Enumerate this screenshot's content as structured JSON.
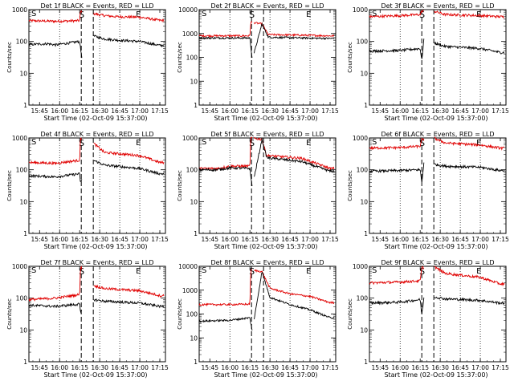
{
  "chart_data": [
    {
      "type": "line",
      "title": "Det 1f BLACK = Events, RED = LLD",
      "xlabel": "Start Time (02-Oct-09 15:37:00)",
      "ylabel": "Counts/sec",
      "yscale": "log",
      "ylim": [
        1,
        1000
      ],
      "yticks": [
        "1",
        "10",
        "100",
        "1000"
      ],
      "xticks": [
        "15:45",
        "16:00",
        "16:15",
        "16:30",
        "16:45",
        "17:00",
        "17:15"
      ],
      "markers": [
        "S",
        "E"
      ],
      "series": [
        {
          "color": "#e00000",
          "points": [
            [
              15.617,
              450
            ],
            [
              15.95,
              430
            ],
            [
              16.25,
              450
            ],
            [
              16.26,
              900
            ],
            [
              16.3,
              850
            ],
            [
              16.32,
              280
            ],
            [
              16.42,
              750
            ],
            [
              16.56,
              650
            ],
            [
              16.72,
              600
            ],
            [
              17.0,
              580
            ],
            [
              17.25,
              460
            ]
          ],
          "gap": [
            16.28,
            16.42
          ]
        },
        {
          "color": "#000000",
          "points": [
            [
              15.617,
              80
            ],
            [
              15.85,
              85
            ],
            [
              15.95,
              78
            ],
            [
              16.25,
              100
            ],
            [
              16.26,
              60
            ],
            [
              16.28,
              30
            ],
            [
              16.42,
              150
            ],
            [
              16.56,
              120
            ],
            [
              16.72,
              110
            ],
            [
              17.0,
              100
            ],
            [
              17.25,
              75
            ]
          ],
          "gap": [
            16.28,
            16.42
          ]
        }
      ]
    },
    {
      "type": "line",
      "title": "Det 2f BLACK = Events, RED = LLD",
      "xlabel": "Start Time (02-Oct-09 15:37:00)",
      "ylabel": "Counts/sec",
      "yscale": "log",
      "ylim": [
        1,
        10000
      ],
      "yticks": [
        "1",
        "10",
        "100",
        "1000",
        "10000"
      ],
      "xticks": [
        "15:45",
        "16:00",
        "16:15",
        "16:30",
        "16:45",
        "17:00",
        "17:15"
      ],
      "markers": [
        "S",
        "E"
      ],
      "series": [
        {
          "color": "#e00000",
          "points": [
            [
              15.617,
              800
            ],
            [
              16.0,
              800
            ],
            [
              16.25,
              800
            ],
            [
              16.26,
              3000
            ],
            [
              16.4,
              2500
            ],
            [
              16.48,
              900
            ],
            [
              16.9,
              850
            ],
            [
              17.25,
              800
            ]
          ],
          "gap": [
            16.28,
            16.3
          ]
        },
        {
          "color": "#000000",
          "points": [
            [
              15.617,
              650
            ],
            [
              16.0,
              650
            ],
            [
              16.25,
              650
            ],
            [
              16.26,
              300
            ],
            [
              16.28,
              80
            ],
            [
              16.4,
              2500
            ],
            [
              16.48,
              700
            ],
            [
              16.9,
              650
            ],
            [
              17.25,
              620
            ]
          ],
          "gap": [
            16.28,
            16.3
          ]
        }
      ]
    },
    {
      "type": "line",
      "title": "Det 3f BLACK = Events, RED = LLD",
      "xlabel": "Start Time (02-Oct-09 15:37:00)",
      "ylabel": "Counts/sec",
      "yscale": "log",
      "ylim": [
        1,
        1000
      ],
      "yticks": [
        "1",
        "10",
        "100",
        "1000"
      ],
      "xticks": [
        "15:45",
        "16:00",
        "16:15",
        "16:30",
        "16:45",
        "17:00",
        "17:15"
      ],
      "markers": [
        "S",
        "E"
      ],
      "series": [
        {
          "color": "#e00000",
          "points": [
            [
              15.617,
              600
            ],
            [
              16.0,
              650
            ],
            [
              16.25,
              700
            ],
            [
              16.27,
              900
            ],
            [
              16.42,
              900
            ],
            [
              16.56,
              700
            ],
            [
              17.0,
              650
            ],
            [
              17.25,
              600
            ]
          ],
          "gap": [
            16.3,
            16.42
          ]
        },
        {
          "color": "#000000",
          "points": [
            [
              15.617,
              50
            ],
            [
              16.0,
              52
            ],
            [
              16.25,
              60
            ],
            [
              16.27,
              25
            ],
            [
              16.3,
              150
            ],
            [
              16.42,
              90
            ],
            [
              16.56,
              70
            ],
            [
              17.0,
              60
            ],
            [
              17.25,
              45
            ]
          ],
          "gap": [
            16.3,
            16.42
          ]
        }
      ]
    },
    {
      "type": "line",
      "title": "Det 4f BLACK = Events, RED = LLD",
      "xlabel": "Start Time (02-Oct-09 15:37:00)",
      "ylabel": "Counts/sec",
      "yscale": "log",
      "ylim": [
        1,
        1000
      ],
      "yticks": [
        "1",
        "10",
        "100",
        "1000"
      ],
      "xticks": [
        "15:45",
        "16:00",
        "16:15",
        "16:30",
        "16:45",
        "17:00",
        "17:15"
      ],
      "markers": [
        "S",
        "E"
      ],
      "series": [
        {
          "color": "#e00000",
          "points": [
            [
              15.617,
              170
            ],
            [
              15.95,
              160
            ],
            [
              16.25,
              200
            ],
            [
              16.26,
              1000
            ],
            [
              16.42,
              700
            ],
            [
              16.56,
              350
            ],
            [
              17.0,
              280
            ],
            [
              17.25,
              170
            ]
          ],
          "gap": [
            16.28,
            16.42
          ]
        },
        {
          "color": "#000000",
          "points": [
            [
              15.617,
              65
            ],
            [
              15.95,
              60
            ],
            [
              16.25,
              75
            ],
            [
              16.26,
              40
            ],
            [
              16.42,
              200
            ],
            [
              16.56,
              140
            ],
            [
              17.0,
              110
            ],
            [
              17.25,
              75
            ]
          ],
          "gap": [
            16.28,
            16.42
          ]
        }
      ]
    },
    {
      "type": "line",
      "title": "Det 5f BLACK = Events, RED = LLD",
      "xlabel": "Start Time (02-Oct-09 15:37:00)",
      "ylabel": "Counts/sec",
      "yscale": "log",
      "ylim": [
        1,
        1000
      ],
      "yticks": [
        "1",
        "10",
        "100",
        "1000"
      ],
      "xticks": [
        "15:45",
        "16:00",
        "16:15",
        "16:30",
        "16:45",
        "17:00",
        "17:15"
      ],
      "markers": [
        "S",
        "E"
      ],
      "series": [
        {
          "color": "#e00000",
          "points": [
            [
              15.617,
              110
            ],
            [
              15.85,
              110
            ],
            [
              16.0,
              130
            ],
            [
              16.25,
              130
            ],
            [
              16.26,
              1000
            ],
            [
              16.4,
              900
            ],
            [
              16.46,
              280
            ],
            [
              16.9,
              230
            ],
            [
              17.25,
              110
            ]
          ],
          "gap": [
            16.28,
            16.3
          ]
        },
        {
          "color": "#000000",
          "points": [
            [
              15.617,
              100
            ],
            [
              15.85,
              100
            ],
            [
              16.0,
              115
            ],
            [
              16.25,
              110
            ],
            [
              16.26,
              60
            ],
            [
              16.28,
              30
            ],
            [
              16.4,
              900
            ],
            [
              16.46,
              240
            ],
            [
              16.9,
              180
            ],
            [
              17.25,
              90
            ]
          ],
          "gap": [
            16.28,
            16.3
          ]
        }
      ]
    },
    {
      "type": "line",
      "title": "Det 6f BLACK = Events, RED = LLD",
      "xlabel": "Start Time (02-Oct-09 15:37:00)",
      "ylabel": "Counts/sec",
      "yscale": "log",
      "ylim": [
        1,
        1000
      ],
      "yticks": [
        "1",
        "10",
        "100",
        "1000"
      ],
      "xticks": [
        "15:45",
        "16:00",
        "16:15",
        "16:30",
        "16:45",
        "17:00",
        "17:15"
      ],
      "markers": [
        "S",
        "E"
      ],
      "series": [
        {
          "color": "#e00000",
          "points": [
            [
              15.617,
              480
            ],
            [
              16.0,
              500
            ],
            [
              16.25,
              550
            ],
            [
              16.27,
              900
            ],
            [
              16.42,
              1000
            ],
            [
              16.56,
              700
            ],
            [
              17.0,
              600
            ],
            [
              17.25,
              480
            ]
          ],
          "gap": [
            16.3,
            16.42
          ]
        },
        {
          "color": "#000000",
          "points": [
            [
              15.617,
              90
            ],
            [
              16.0,
              95
            ],
            [
              16.25,
              100
            ],
            [
              16.27,
              40
            ],
            [
              16.3,
              200
            ],
            [
              16.42,
              150
            ],
            [
              16.56,
              130
            ],
            [
              17.0,
              120
            ],
            [
              17.25,
              95
            ]
          ],
          "gap": [
            16.3,
            16.42
          ]
        }
      ]
    },
    {
      "type": "line",
      "title": "Det 7f BLACK = Events, RED = LLD",
      "xlabel": "Start Time (02-Oct-09 15:37:00)",
      "ylabel": "Counts/sec",
      "yscale": "log",
      "ylim": [
        1,
        1000
      ],
      "yticks": [
        "1",
        "10",
        "100",
        "1000"
      ],
      "xticks": [
        "15:45",
        "16:00",
        "16:15",
        "16:30",
        "16:45",
        "17:00",
        "17:15"
      ],
      "markers": [
        "S",
        "E"
      ],
      "series": [
        {
          "color": "#e00000",
          "points": [
            [
              15.617,
              90
            ],
            [
              15.95,
              100
            ],
            [
              16.25,
              130
            ],
            [
              16.26,
              1000
            ],
            [
              16.42,
              250
            ],
            [
              16.56,
              200
            ],
            [
              17.0,
              170
            ],
            [
              17.25,
              120
            ]
          ],
          "gap": [
            16.28,
            16.42
          ]
        },
        {
          "color": "#000000",
          "points": [
            [
              15.617,
              60
            ],
            [
              15.95,
              55
            ],
            [
              16.25,
              65
            ],
            [
              16.26,
              35
            ],
            [
              16.42,
              90
            ],
            [
              16.56,
              80
            ],
            [
              17.0,
              70
            ],
            [
              17.25,
              55
            ]
          ],
          "gap": [
            16.28,
            16.42
          ]
        }
      ]
    },
    {
      "type": "line",
      "title": "Det 8f BLACK = Events, RED = LLD",
      "xlabel": "Start Time (02-Oct-09 15:37:00)",
      "ylabel": "Counts/sec",
      "yscale": "log",
      "ylim": [
        1,
        10000
      ],
      "yticks": [
        "1",
        "10",
        "100",
        "1000",
        "10000"
      ],
      "xticks": [
        "15:45",
        "16:00",
        "16:15",
        "16:30",
        "16:45",
        "17:00",
        "17:15"
      ],
      "markers": [
        "S",
        "E"
      ],
      "series": [
        {
          "color": "#e00000",
          "points": [
            [
              15.617,
              250
            ],
            [
              16.0,
              250
            ],
            [
              16.25,
              260
            ],
            [
              16.26,
              7000
            ],
            [
              16.4,
              6000
            ],
            [
              16.5,
              1200
            ],
            [
              16.75,
              700
            ],
            [
              17.0,
              550
            ],
            [
              17.25,
              300
            ]
          ],
          "gap": [
            16.28,
            16.3
          ]
        },
        {
          "color": "#000000",
          "points": [
            [
              15.617,
              50
            ],
            [
              16.0,
              55
            ],
            [
              16.25,
              70
            ],
            [
              16.26,
              40
            ],
            [
              16.28,
              20
            ],
            [
              16.4,
              6000
            ],
            [
              16.5,
              500
            ],
            [
              16.75,
              250
            ],
            [
              17.0,
              150
            ],
            [
              17.25,
              70
            ]
          ],
          "gap": [
            16.28,
            16.3
          ]
        }
      ]
    },
    {
      "type": "line",
      "title": "Det 9f BLACK = Events, RED = LLD",
      "xlabel": "Start Time (02-Oct-09 15:37:00)",
      "ylabel": "Counts/sec",
      "yscale": "log",
      "ylim": [
        1,
        1000
      ],
      "yticks": [
        "1",
        "10",
        "100",
        "1000"
      ],
      "xticks": [
        "15:45",
        "16:00",
        "16:15",
        "16:30",
        "16:45",
        "17:00",
        "17:15"
      ],
      "markers": [
        "S",
        "E"
      ],
      "series": [
        {
          "color": "#e00000",
          "points": [
            [
              15.617,
              300
            ],
            [
              16.0,
              320
            ],
            [
              16.25,
              350
            ],
            [
              16.27,
              900
            ],
            [
              16.42,
              1000
            ],
            [
              16.56,
              600
            ],
            [
              17.0,
              450
            ],
            [
              17.25,
              280
            ]
          ],
          "gap": [
            16.3,
            16.42
          ]
        },
        {
          "color": "#000000",
          "points": [
            [
              15.617,
              70
            ],
            [
              16.0,
              75
            ],
            [
              16.25,
              90
            ],
            [
              16.27,
              30
            ],
            [
              16.3,
              120
            ],
            [
              16.42,
              110
            ],
            [
              16.56,
              95
            ],
            [
              17.0,
              85
            ],
            [
              17.25,
              70
            ]
          ],
          "gap": [
            16.3,
            16.42
          ]
        }
      ]
    }
  ]
}
